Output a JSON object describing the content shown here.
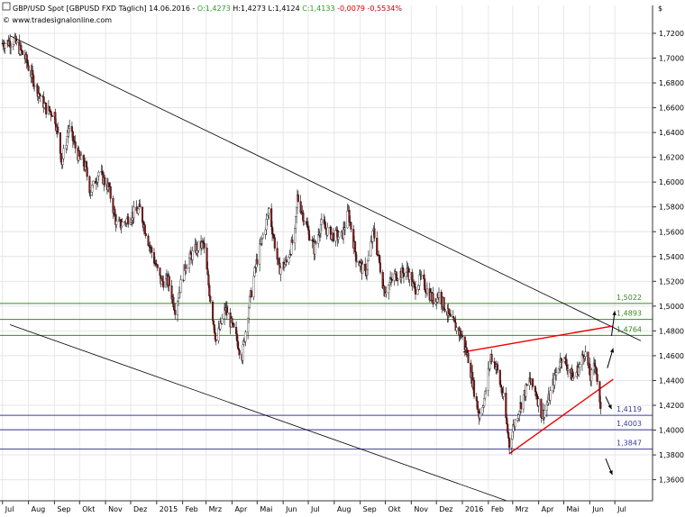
{
  "header": {
    "instrument": "GBP/USD Spot [GBPUSD FXD  Täglich] 14.06.2016 - ",
    "open": "O:1,4273",
    "hlc": " H:1,4273 L:1,4124 ",
    "close": "C:1,4133 ",
    "change": "-0,0079 -0,5534%",
    "watermark": "© www.tradesignalonline.com",
    "currency_symbol": "$"
  },
  "colors": {
    "up_candle": "#ffffff",
    "down_candle": "#8b1a1a",
    "wick": "#000000",
    "open_text": "#2a9d2a",
    "close_text": "#2a9d2a",
    "change_text": "#cc0000",
    "resistance_lines": "#3a8a1a",
    "support_lines": "#3a3a9a",
    "trendline_red": "#ee0000",
    "channel": "#000000"
  },
  "chart_data": {
    "type": "candlestick",
    "title": "GBP/USD Spot [GBPUSD FXD  Täglich]",
    "ylim": [
      1.343,
      1.7425
    ],
    "y_ticks": [
      "1,3600",
      "1,3800",
      "1,4000",
      "1,4200",
      "1,4400",
      "1,4600",
      "1,4800",
      "1,5000",
      "1,5200",
      "1,5400",
      "1,5600",
      "1,5800",
      "1,6000",
      "1,6200",
      "1,6400",
      "1,6600",
      "1,6800",
      "1,7000",
      "1,7200"
    ],
    "x_ticks": [
      {
        "label": "Jul",
        "date": "2014-07-01"
      },
      {
        "label": "Aug",
        "date": "2014-08-01"
      },
      {
        "label": "Sep",
        "date": "2014-09-01"
      },
      {
        "label": "Okt",
        "date": "2014-10-01"
      },
      {
        "label": "Nov",
        "date": "2014-11-01"
      },
      {
        "label": "Dez",
        "date": "2014-12-01"
      },
      {
        "label": "2015",
        "date": "2015-01-01"
      },
      {
        "label": "Feb",
        "date": "2015-02-01"
      },
      {
        "label": "Mrz",
        "date": "2015-03-01"
      },
      {
        "label": "Apr",
        "date": "2015-04-01"
      },
      {
        "label": "Mai",
        "date": "2015-05-01"
      },
      {
        "label": "Jun",
        "date": "2015-06-01"
      },
      {
        "label": "Jul",
        "date": "2015-07-01"
      },
      {
        "label": "Aug",
        "date": "2015-08-01"
      },
      {
        "label": "Sep",
        "date": "2015-09-01"
      },
      {
        "label": "Okt",
        "date": "2015-10-01"
      },
      {
        "label": "Nov",
        "date": "2015-11-01"
      },
      {
        "label": "Dez",
        "date": "2015-12-01"
      },
      {
        "label": "2016",
        "date": "2016-01-01"
      },
      {
        "label": "Feb",
        "date": "2016-02-01"
      },
      {
        "label": "Mrz",
        "date": "2016-03-01"
      },
      {
        "label": "Apr",
        "date": "2016-04-01"
      },
      {
        "label": "Mai",
        "date": "2016-05-01"
      },
      {
        "label": "Jun",
        "date": "2016-06-01"
      },
      {
        "label": "Jul",
        "date": "2016-07-01"
      }
    ],
    "xlim": [
      "2014-06-28",
      "2016-08-15"
    ],
    "price_path": [
      [
        "2014-07-01",
        1.712
      ],
      [
        "2014-07-15",
        1.714
      ],
      [
        "2014-07-28",
        1.7
      ],
      [
        "2014-08-08",
        1.68
      ],
      [
        "2014-08-22",
        1.659
      ],
      [
        "2014-09-01",
        1.655
      ],
      [
        "2014-09-10",
        1.616
      ],
      [
        "2014-09-18",
        1.644
      ],
      [
        "2014-09-30",
        1.62
      ],
      [
        "2014-10-08",
        1.612
      ],
      [
        "2014-10-14",
        1.592
      ],
      [
        "2014-10-24",
        1.608
      ],
      [
        "2014-11-05",
        1.595
      ],
      [
        "2014-11-14",
        1.566
      ],
      [
        "2014-11-20",
        1.566
      ],
      [
        "2014-12-03",
        1.574
      ],
      [
        "2014-12-12",
        1.578
      ],
      [
        "2014-12-23",
        1.55
      ],
      [
        "2015-01-06",
        1.52
      ],
      [
        "2015-01-15",
        1.52
      ],
      [
        "2015-01-23",
        1.498
      ],
      [
        "2015-02-05",
        1.534
      ],
      [
        "2015-02-18",
        1.547
      ],
      [
        "2015-02-26",
        1.55
      ],
      [
        "2015-03-06",
        1.506
      ],
      [
        "2015-03-13",
        1.472
      ],
      [
        "2015-03-24",
        1.498
      ],
      [
        "2015-04-03",
        1.48
      ],
      [
        "2015-04-13",
        1.46
      ],
      [
        "2015-04-21",
        1.5
      ],
      [
        "2015-04-30",
        1.535
      ],
      [
        "2015-05-12",
        1.568
      ],
      [
        "2015-05-15",
        1.578
      ],
      [
        "2015-05-27",
        1.53
      ],
      [
        "2015-06-05",
        1.535
      ],
      [
        "2015-06-15",
        1.558
      ],
      [
        "2015-06-18",
        1.588
      ],
      [
        "2015-07-01",
        1.56
      ],
      [
        "2015-07-08",
        1.546
      ],
      [
        "2015-07-16",
        1.566
      ],
      [
        "2015-07-30",
        1.557
      ],
      [
        "2015-08-10",
        1.556
      ],
      [
        "2015-08-18",
        1.575
      ],
      [
        "2015-08-27",
        1.54
      ],
      [
        "2015-09-07",
        1.525
      ],
      [
        "2015-09-17",
        1.56
      ],
      [
        "2015-09-30",
        1.512
      ],
      [
        "2015-10-13",
        1.525
      ],
      [
        "2015-10-28",
        1.528
      ],
      [
        "2015-11-05",
        1.513
      ],
      [
        "2015-11-12",
        1.522
      ],
      [
        "2015-11-27",
        1.505
      ],
      [
        "2015-12-04",
        1.51
      ],
      [
        "2015-12-17",
        1.49
      ],
      [
        "2015-12-31",
        1.476
      ],
      [
        "2016-01-08",
        1.458
      ],
      [
        "2016-01-15",
        1.432
      ],
      [
        "2016-01-21",
        1.412
      ],
      [
        "2016-01-28",
        1.428
      ],
      [
        "2016-02-04",
        1.46
      ],
      [
        "2016-02-11",
        1.45
      ],
      [
        "2016-02-19",
        1.425
      ],
      [
        "2016-02-26",
        1.388
      ],
      [
        "2016-03-03",
        1.405
      ],
      [
        "2016-03-10",
        1.42
      ],
      [
        "2016-03-21",
        1.44
      ],
      [
        "2016-03-29",
        1.43
      ],
      [
        "2016-04-05",
        1.412
      ],
      [
        "2016-04-12",
        1.422
      ],
      [
        "2016-04-19",
        1.44
      ],
      [
        "2016-04-29",
        1.46
      ],
      [
        "2016-05-05",
        1.452
      ],
      [
        "2016-05-12",
        1.442
      ],
      [
        "2016-05-20",
        1.452
      ],
      [
        "2016-05-26",
        1.464
      ],
      [
        "2016-06-02",
        1.442
      ],
      [
        "2016-06-08",
        1.454
      ],
      [
        "2016-06-14",
        1.413
      ]
    ],
    "horizontal_levels": [
      {
        "value": 1.5022,
        "label": "1,5022",
        "kind": "resistance"
      },
      {
        "value": 1.4893,
        "label": "1,4893",
        "kind": "resistance"
      },
      {
        "value": 1.4764,
        "label": "1,4764",
        "kind": "resistance"
      },
      {
        "value": 1.4119,
        "label": "1,4119",
        "kind": "support"
      },
      {
        "value": 1.4003,
        "label": "1,4003",
        "kind": "support"
      },
      {
        "value": 1.3847,
        "label": "1,3847",
        "kind": "support"
      }
    ],
    "trendlines": [
      {
        "name": "channel-upper",
        "color": "black",
        "from": [
          "2014-07-10",
          1.718
        ],
        "to": [
          "2016-08-01",
          1.472
        ]
      },
      {
        "name": "channel-lower",
        "color": "black",
        "from": [
          "2014-07-10",
          1.485
        ],
        "to": [
          "2016-02-23",
          1.343
        ]
      },
      {
        "name": "red-upper",
        "color": "red",
        "from": [
          "2016-01-02",
          1.463
        ],
        "to": [
          "2016-06-29",
          1.484
        ]
      },
      {
        "name": "red-lower",
        "color": "red",
        "from": [
          "2016-02-26",
          1.381
        ],
        "to": [
          "2016-06-29",
          1.441
        ]
      }
    ],
    "arrows": [
      {
        "from": [
          "2016-06-27",
          1.476
        ],
        "to": [
          "2016-07-01",
          1.496
        ]
      },
      {
        "from": [
          "2016-06-22",
          1.45
        ],
        "to": [
          "2016-06-29",
          1.466
        ]
      },
      {
        "from": [
          "2016-06-20",
          1.427
        ],
        "to": [
          "2016-06-27",
          1.417
        ]
      },
      {
        "from": [
          "2016-06-20",
          1.377
        ],
        "to": [
          "2016-06-28",
          1.364
        ]
      }
    ]
  }
}
